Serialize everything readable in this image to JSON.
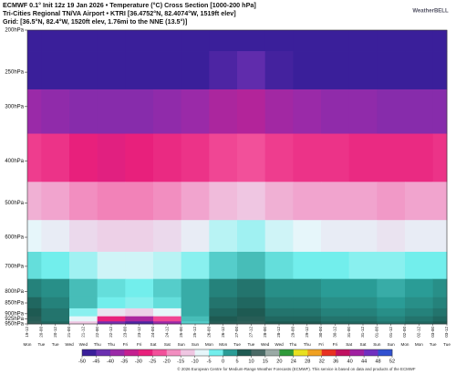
{
  "chart_data": {
    "type": "heatmap",
    "title": "ECMWF 0.1° Init 12z 19 Jan 2026 • Temperature (°C) Cross Section [1000-200 hPa]",
    "subtitle": "Tri-Cities Regional TN/VA Airport • KTRI [36.4752°N, 82.4074°W, 1519ft elev]",
    "grid_info": "Grid: [36.5°N, 82.4°W, 1520ft elev, 1.76mi to the NNE (13.5°)]",
    "logo": "WeatherBELL",
    "footer": "© 2026 European Centre for Medium-Range Weather Forecasts (ECMWF). This service is based on data and products of the ECMWF",
    "ylog": true,
    "ylim": [
      200,
      950
    ],
    "yticks": [
      {
        "value": 200,
        "label": "200hPa"
      },
      {
        "value": 250,
        "label": "250hPa"
      },
      {
        "value": 300,
        "label": "300hPa"
      },
      {
        "value": 400,
        "label": "400hPa"
      },
      {
        "value": 500,
        "label": "500hPa"
      },
      {
        "value": 600,
        "label": "600hPa"
      },
      {
        "value": 700,
        "label": "700hPa"
      },
      {
        "value": 800,
        "label": "800hPa"
      },
      {
        "value": 850,
        "label": "850hPa"
      },
      {
        "value": 900,
        "label": "900hPa"
      },
      {
        "value": 925,
        "label": "925hPa"
      },
      {
        "value": 950,
        "label": "950hPa"
      }
    ],
    "xlim": [
      0,
      360
    ],
    "xticks": [
      {
        "value": 0,
        "label": "19-12"
      },
      {
        "value": 12,
        "label": "20-00"
      },
      {
        "value": 24,
        "label": "20-12"
      },
      {
        "value": 36,
        "label": "21-00"
      },
      {
        "value": 48,
        "label": "21-12"
      },
      {
        "value": 60,
        "label": "22-00"
      },
      {
        "value": 72,
        "label": "22-12"
      },
      {
        "value": 84,
        "label": "23-00"
      },
      {
        "value": 96,
        "label": "23-12"
      },
      {
        "value": 108,
        "label": "24-00"
      },
      {
        "value": 120,
        "label": "24-12"
      },
      {
        "value": 132,
        "label": "25-00"
      },
      {
        "value": 144,
        "label": "25-12"
      },
      {
        "value": 156,
        "label": "26-00"
      },
      {
        "value": 168,
        "label": "26-12"
      },
      {
        "value": 180,
        "label": "27-00"
      },
      {
        "value": 192,
        "label": "27-12"
      },
      {
        "value": 204,
        "label": "28-00"
      },
      {
        "value": 216,
        "label": "28-12"
      },
      {
        "value": 228,
        "label": "29-00"
      },
      {
        "value": 240,
        "label": "29-12"
      },
      {
        "value": 252,
        "label": "30-00"
      },
      {
        "value": 264,
        "label": "30-12"
      },
      {
        "value": 276,
        "label": "31-00"
      },
      {
        "value": 288,
        "label": "31-12"
      },
      {
        "value": 300,
        "label": "01-00"
      },
      {
        "value": 312,
        "label": "01-12"
      },
      {
        "value": 324,
        "label": "02-00"
      },
      {
        "value": 336,
        "label": "02-12"
      },
      {
        "value": 348,
        "label": "03-00"
      },
      {
        "value": 360,
        "label": "03-12"
      }
    ],
    "weekdays": [
      "Mon",
      "Tue",
      "Tue",
      "Wed",
      "Wed",
      "Thu",
      "Thu",
      "Fri",
      "Fri",
      "Sat",
      "Sat",
      "Sun",
      "Sun",
      "Mon",
      "Mon",
      "Tue",
      "Tue",
      "Wed",
      "Wed",
      "Thu",
      "Thu",
      "Fri",
      "Fri",
      "Sat",
      "Sat",
      "Sun",
      "Sun",
      "Mon",
      "Mon",
      "Tue",
      "Tue"
    ],
    "x": [
      0,
      24,
      48,
      72,
      96,
      120,
      144,
      168,
      192,
      216,
      240,
      264,
      288,
      312,
      336,
      360
    ],
    "levels": [
      200,
      250,
      300,
      400,
      500,
      600,
      700,
      800,
      850,
      900,
      925,
      950
    ],
    "values": [
      [
        -56,
        -55,
        -54,
        -56,
        -56,
        -55,
        -54,
        -53,
        -50,
        -54,
        -55,
        -56,
        -56,
        -56,
        -55,
        -55
      ],
      [
        -50,
        -51,
        -52,
        -52,
        -52,
        -51,
        -50,
        -48,
        -46,
        -49,
        -50,
        -51,
        -52,
        -52,
        -52,
        -52
      ],
      [
        -40,
        -41,
        -42,
        -42,
        -42,
        -41,
        -40,
        -38,
        -37,
        -39,
        -40,
        -41,
        -41,
        -42,
        -42,
        -42
      ],
      [
        -27,
        -28,
        -30,
        -31,
        -30,
        -29,
        -28,
        -26,
        -25,
        -27,
        -28,
        -28,
        -29,
        -29,
        -29,
        -28
      ],
      [
        -17,
        -18,
        -20,
        -21,
        -21,
        -20,
        -18,
        -16,
        -15,
        -17,
        -18,
        -18,
        -18,
        -19,
        -18,
        -18
      ],
      [
        -10,
        -11,
        -13,
        -14,
        -14,
        -13,
        -11,
        -8,
        -7,
        -9,
        -10,
        -11,
        -11,
        -12,
        -11,
        -11
      ],
      [
        -4,
        -5,
        -7,
        -9,
        -9,
        -8,
        -6,
        -3,
        -2,
        -4,
        -5,
        -5,
        -6,
        -6,
        -5,
        -5
      ],
      [
        2,
        1,
        -2,
        -4,
        -5,
        -3,
        -1,
        2,
        3,
        1,
        1,
        0,
        0,
        -1,
        0,
        1
      ],
      [
        4,
        2,
        -2,
        -5,
        -6,
        -4,
        -1,
        3,
        4,
        2,
        2,
        1,
        1,
        0,
        1,
        2
      ],
      [
        5,
        3,
        -6,
        -12,
        -14,
        -10,
        -1,
        4,
        5,
        3,
        3,
        2,
        2,
        1,
        2,
        3
      ],
      [
        6,
        3,
        -10,
        -30,
        -38,
        -26,
        -2,
        5,
        6,
        4,
        4,
        3,
        3,
        2,
        3,
        4
      ],
      [
        7,
        4,
        -15,
        -44,
        -48,
        -40,
        -3,
        6,
        7,
        5,
        5,
        4,
        4,
        3,
        4,
        5
      ]
    ],
    "colorbar_ticks": [
      -50,
      -45,
      -40,
      -35,
      -30,
      -25,
      -20,
      -15,
      -10,
      -5,
      0,
      5,
      10,
      15,
      20,
      24,
      28,
      32,
      36,
      40,
      44,
      48,
      52
    ],
    "colors": [
      "#3a1f9a",
      "#6a2fb0",
      "#9a2aa8",
      "#c42090",
      "#e8207c",
      "#f2509a",
      "#f28ec0",
      "#efc6e2",
      "#e6f6fa",
      "#72eeec",
      "#2a9c96",
      "#1e5a52",
      "#4a6a66",
      "#9aaaa6",
      "#2f9a3a",
      "#e8e020",
      "#f0a020",
      "#e83020",
      "#c01060",
      "#a020a0",
      "#7030c0",
      "#3050d0",
      "#20a0e0"
    ]
  }
}
